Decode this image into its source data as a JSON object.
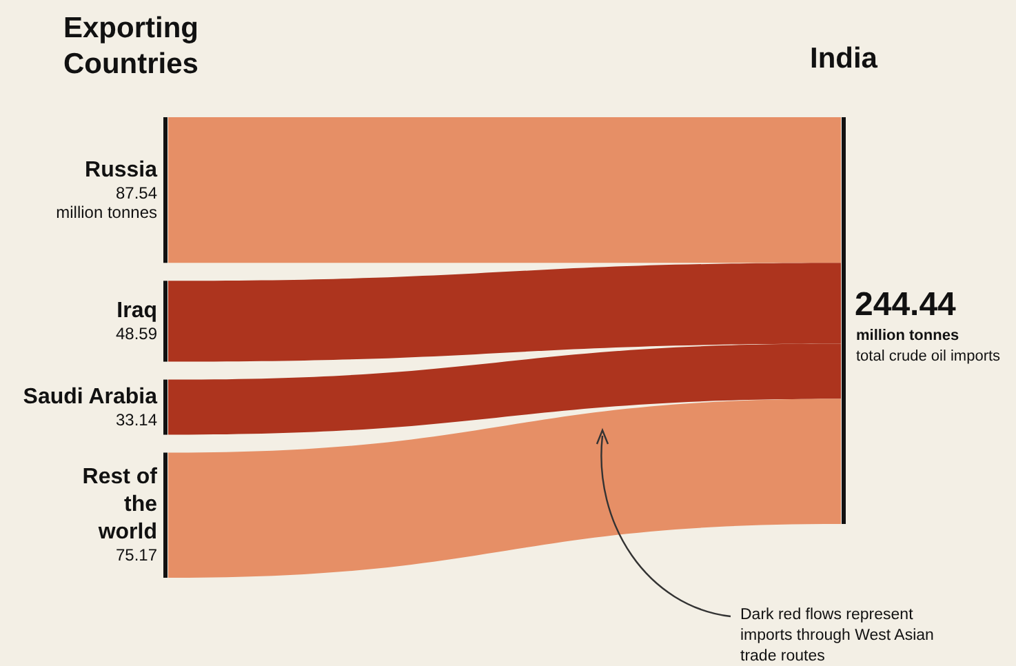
{
  "chart_data": {
    "type": "other",
    "categories": [
      "Russia",
      "Iraq",
      "Saudi Arabia",
      "Rest of the world"
    ],
    "values": [
      87.54,
      48.59,
      33.14,
      75.17
    ],
    "value_labels": [
      "87.54 million tonnes",
      "48.59",
      "33.14",
      "75.17"
    ],
    "colors": [
      "#e68f66",
      "#ad341e",
      "#ad341e",
      "#e68f66"
    ],
    "annotations": [
      "Exporting Countries",
      "India",
      "244.44",
      "million tonnes",
      "total crude oil imports",
      "Dark red flows represent imports through West Asian trade routes"
    ]
  }
}
